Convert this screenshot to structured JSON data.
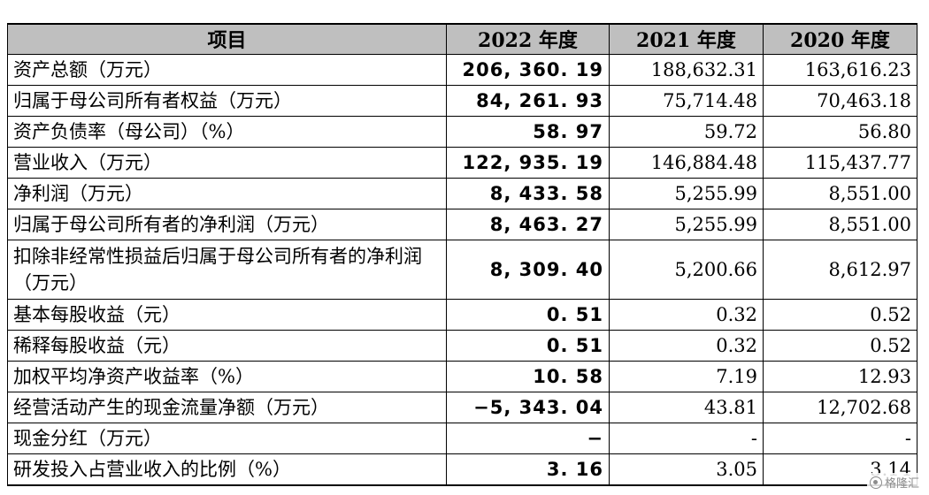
{
  "table": {
    "headers": [
      "项目",
      "2022 年度",
      "2021 年度",
      "2020 年度"
    ],
    "rows": [
      {
        "label": "资产总额（万元）",
        "v2022": "206, 360. 19",
        "v2021": "188,632.31",
        "v2020": "163,616.23"
      },
      {
        "label": "归属于母公司所有者权益（万元）",
        "v2022": "84, 261. 93",
        "v2021": "75,714.48",
        "v2020": "70,463.18"
      },
      {
        "label": "资产负债率（母公司）（%）",
        "v2022": "58. 97",
        "v2021": "59.72",
        "v2020": "56.80"
      },
      {
        "label": "营业收入（万元）",
        "v2022": "122, 935. 19",
        "v2021": "146,884.48",
        "v2020": "115,437.77"
      },
      {
        "label": "净利润（万元）",
        "v2022": "8, 433. 58",
        "v2021": "5,255.99",
        "v2020": "8,551.00"
      },
      {
        "label": "归属于母公司所有者的净利润（万元）",
        "v2022": "8, 463. 27",
        "v2021": "5,255.99",
        "v2020": "8,551.00"
      },
      {
        "label": "扣除非经常性损益后归属于母公司所有者的净利润（万元）",
        "v2022": "8, 309. 40",
        "v2021": "5,200.66",
        "v2020": "8,612.97"
      },
      {
        "label": "基本每股收益（元）",
        "v2022": "0. 51",
        "v2021": "0.32",
        "v2020": "0.52"
      },
      {
        "label": "稀释每股收益（元）",
        "v2022": "0. 51",
        "v2021": "0.32",
        "v2020": "0.52"
      },
      {
        "label": "加权平均净资产收益率（%）",
        "v2022": "10. 58",
        "v2021": "7.19",
        "v2020": "12.93"
      },
      {
        "label": "经营活动产生的现金流量净额（万元）",
        "v2022": "−5, 343. 04",
        "v2021": "43.81",
        "v2020": "12,702.68"
      },
      {
        "label": "现金分红（万元）",
        "v2022": "−",
        "v2021": "-",
        "v2020": "-"
      },
      {
        "label": "研发投入占营业收入的比例（%）",
        "v2022": "3. 16",
        "v2021": "3.05",
        "v2020": "3.14"
      }
    ]
  },
  "watermark": {
    "text": "格隆汇",
    "icon": "gelonghui-logo-icon"
  }
}
